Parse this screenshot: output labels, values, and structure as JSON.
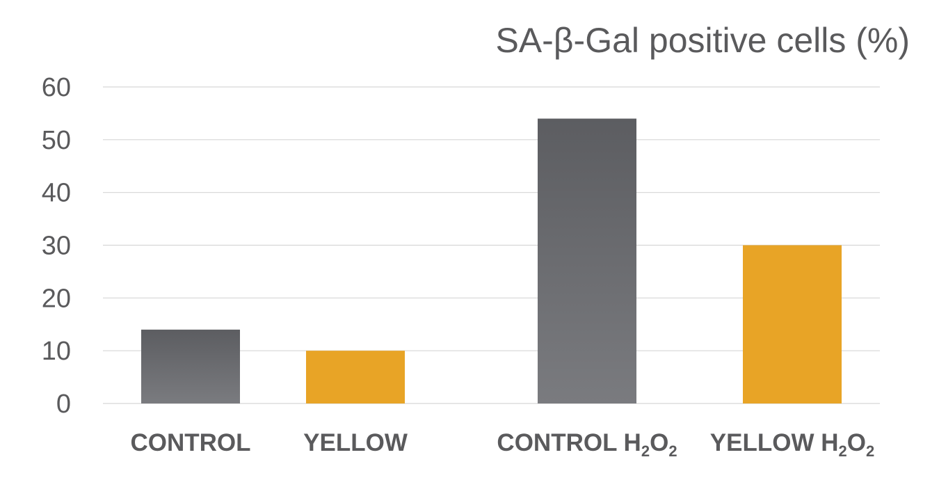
{
  "chart_data": {
    "type": "bar",
    "title": "SA-β-Gal positive cells (%)",
    "xlabel": "",
    "ylabel": "",
    "ylim": [
      0,
      60
    ],
    "yticks": [
      0,
      10,
      20,
      30,
      40,
      50,
      60
    ],
    "grid": true,
    "categories": [
      {
        "base": "CONTROL",
        "suffix": []
      },
      {
        "base": "YELLOW",
        "suffix": []
      },
      {
        "base": "CONTROL H",
        "suffix": [
          [
            "2",
            true
          ],
          [
            "O",
            false
          ],
          [
            "2",
            true
          ]
        ]
      },
      {
        "base": "YELLOW H",
        "suffix": [
          [
            "2",
            true
          ],
          [
            "O",
            false
          ],
          [
            "2",
            true
          ]
        ]
      }
    ],
    "values": [
      14,
      10,
      54,
      30
    ],
    "bar_colors": [
      "gray",
      "gold",
      "gray",
      "gold"
    ]
  },
  "colors": {
    "gray_top": "#5c5d61",
    "gray_bottom": "#7a7b7f",
    "gold": "#e8a426",
    "text": "#5a5a5c",
    "grid": "#d6d6d6"
  }
}
